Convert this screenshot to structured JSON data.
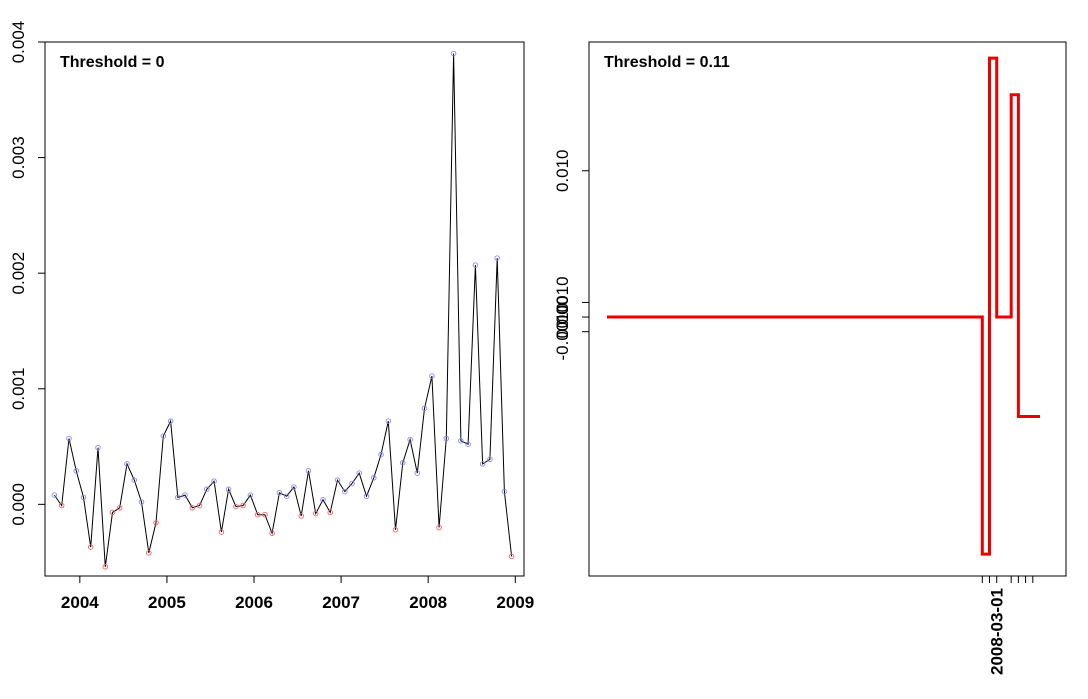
{
  "chart_data": [
    {
      "type": "line",
      "title": "Threshold = 0",
      "xlabel": "",
      "ylabel": "",
      "ylim": [
        -0.00062,
        0.004
      ],
      "xlim": [
        2003.6,
        2009.1
      ],
      "grid": false,
      "x_ticks": [
        2004,
        2005,
        2006,
        2007,
        2008,
        2009
      ],
      "x_tick_labels": [
        "2004",
        "2005",
        "2006",
        "2007",
        "2008",
        "2009"
      ],
      "y_ticks": [
        0,
        0.001,
        0.002,
        0.003,
        0.004
      ],
      "y_tick_labels": [
        "0.000",
        "0.001",
        "0.002",
        "0.003",
        "0.004"
      ],
      "line_color": "#000000",
      "positive_point_color": "#8888ee",
      "negative_point_color": "#ee6666",
      "x": [
        2003.708,
        2003.792,
        2003.875,
        2003.958,
        2004.042,
        2004.125,
        2004.208,
        2004.292,
        2004.375,
        2004.458,
        2004.542,
        2004.625,
        2004.708,
        2004.792,
        2004.875,
        2004.958,
        2005.042,
        2005.125,
        2005.208,
        2005.292,
        2005.375,
        2005.458,
        2005.542,
        2005.625,
        2005.708,
        2005.792,
        2005.875,
        2005.958,
        2006.042,
        2006.125,
        2006.208,
        2006.292,
        2006.375,
        2006.458,
        2006.542,
        2006.625,
        2006.708,
        2006.792,
        2006.875,
        2006.958,
        2007.042,
        2007.125,
        2007.208,
        2007.292,
        2007.375,
        2007.458,
        2007.542,
        2007.625,
        2007.708,
        2007.792,
        2007.875,
        2007.958,
        2008.042,
        2008.125,
        2008.208,
        2008.292,
        2008.375,
        2008.458,
        2008.542,
        2008.625,
        2008.708,
        2008.792,
        2008.875,
        2008.958
      ],
      "values": [
        8e-05,
        -1e-05,
        0.00057,
        0.00029,
        6e-05,
        -0.00037,
        0.00049,
        -0.00054,
        -7e-05,
        -3e-05,
        0.00035,
        0.00021,
        2e-05,
        -0.00042,
        -0.00016,
        0.00059,
        0.00072,
        6e-05,
        8e-05,
        -3e-05,
        -1e-05,
        0.00013,
        0.0002,
        -0.00024,
        0.00013,
        -2e-05,
        -1e-05,
        8e-05,
        -9e-05,
        -9e-05,
        -0.00025,
        0.0001,
        7e-05,
        0.00015,
        -0.0001,
        0.00029,
        -8e-05,
        4e-05,
        -7e-05,
        0.00021,
        0.00011,
        0.00018,
        0.00027,
        7e-05,
        0.00023,
        0.00043,
        0.00072,
        -0.00022,
        0.00036,
        0.00056,
        0.00027,
        0.00083,
        0.00111,
        -0.0002,
        0.00057,
        0.0039,
        0.00055,
        0.00052,
        0.00207,
        0.00035,
        0.00039,
        0.00213,
        0.00011,
        -0.00045
      ]
    },
    {
      "type": "line",
      "title": "Threshold = 0.11",
      "xlabel": "",
      "ylabel": "",
      "ylim": [
        -0.0177,
        0.0188
      ],
      "grid": false,
      "step": true,
      "line_color": "#ee0000",
      "y_ticks": [
        -0.001,
        0,
        0.001,
        0.01
      ],
      "y_tick_labels": [
        "-0.0010",
        "0.000",
        "0.0010",
        "0.010"
      ],
      "x_tick_labels": [
        "2008-03-01"
      ],
      "x": [
        "2003-09-01",
        "2008-01-01",
        "2008-02-01",
        "2008-03-01",
        "2008-05-01",
        "2008-06-01",
        "2008-07-01",
        "2008-08-01"
      ],
      "values": [
        0.0,
        -0.0162,
        0.0177,
        0.0,
        0.0152,
        -0.0068,
        -0.0068,
        -0.0068
      ]
    }
  ]
}
